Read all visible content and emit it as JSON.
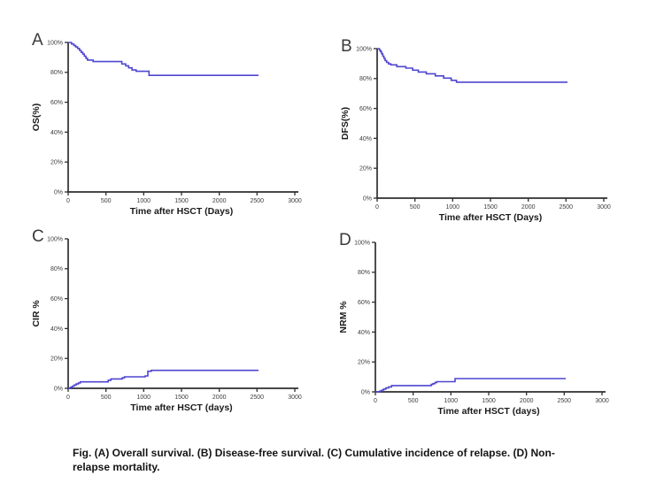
{
  "page": {
    "background": "#ffffff"
  },
  "colors": {
    "curve": "#4f46d0",
    "axis": "#2e2e2e",
    "tick_text": "#3d3d3d",
    "label_text": "#1a1a1a",
    "panel_letter": "#3a3a3a"
  },
  "caption": {
    "lines": [
      "Fig. (A) Overall survival. (B) Disease-free survival. (C) Cumulative incidence of relapse. (D) Non-",
      "relapse mortality."
    ]
  },
  "chart_data": [
    {
      "type": "line",
      "panel": "A",
      "ylabel": "OS(%)",
      "xlabel": "Time after HSCT (Days)",
      "xlim": [
        0,
        3000
      ],
      "ylim": [
        0,
        100
      ],
      "x_ticks": [
        0,
        500,
        1000,
        1500,
        2000,
        2500,
        3000
      ],
      "y_ticks": [
        0,
        20,
        40,
        60,
        80,
        100
      ],
      "y_tick_labels": [
        "0%",
        "20%",
        "40%",
        "60%",
        "80%",
        "100%"
      ],
      "step": true,
      "grid": false,
      "legend": "none",
      "series": [
        {
          "name": "Overall survival",
          "points": [
            [
              0,
              100
            ],
            [
              45,
              99
            ],
            [
              75,
              98
            ],
            [
              100,
              97
            ],
            [
              125,
              96
            ],
            [
              150,
              94.7
            ],
            [
              172,
              93.4
            ],
            [
              195,
              92.2
            ],
            [
              215,
              90.8
            ],
            [
              235,
              89.4
            ],
            [
              255,
              88.2
            ],
            [
              330,
              87.2
            ],
            [
              710,
              85.6
            ],
            [
              762,
              84.4
            ],
            [
              800,
              83
            ],
            [
              845,
              81.6
            ],
            [
              900,
              80.7
            ],
            [
              1070,
              78
            ],
            [
              2520,
              78
            ]
          ]
        }
      ]
    },
    {
      "type": "line",
      "panel": "B",
      "ylabel": "DFS(%)",
      "xlabel": "Time after HSCT (Days)",
      "xlim": [
        0,
        3000
      ],
      "ylim": [
        0,
        100
      ],
      "x_ticks": [
        0,
        500,
        1000,
        1500,
        2000,
        2500,
        3000
      ],
      "y_ticks": [
        0,
        20,
        40,
        60,
        80,
        100
      ],
      "y_tick_labels": [
        "0%",
        "20%",
        "40%",
        "60%",
        "80%",
        "100%"
      ],
      "step": true,
      "grid": false,
      "legend": "none",
      "series": [
        {
          "name": "Disease-free survival",
          "points": [
            [
              0,
              100
            ],
            [
              30,
              99
            ],
            [
              45,
              98
            ],
            [
              60,
              96.5
            ],
            [
              75,
              95
            ],
            [
              90,
              93.5
            ],
            [
              105,
              92
            ],
            [
              125,
              90.8
            ],
            [
              150,
              89.8
            ],
            [
              180,
              89.2
            ],
            [
              260,
              88
            ],
            [
              380,
              87
            ],
            [
              470,
              85.6
            ],
            [
              545,
              84.4
            ],
            [
              650,
              83.2
            ],
            [
              770,
              81.8
            ],
            [
              880,
              80.3
            ],
            [
              980,
              78.8
            ],
            [
              1050,
              77.6
            ],
            [
              2520,
              77.6
            ]
          ]
        }
      ]
    },
    {
      "type": "line",
      "panel": "C",
      "ylabel": "CIR %",
      "xlabel": "Time after HSCT (days)",
      "xlim": [
        0,
        3000
      ],
      "ylim": [
        0,
        100
      ],
      "x_ticks": [
        0,
        500,
        1000,
        1500,
        2000,
        2500,
        3000
      ],
      "y_ticks": [
        0,
        20,
        40,
        60,
        80,
        100
      ],
      "y_tick_labels": [
        "0%",
        "20%",
        "40%",
        "60%",
        "80%",
        "100%"
      ],
      "step": true,
      "grid": false,
      "legend": "none",
      "series": [
        {
          "name": "Cumulative incidence of relapse",
          "points": [
            [
              0,
              0
            ],
            [
              30,
              0.7
            ],
            [
              55,
              1.5
            ],
            [
              80,
              2.2
            ],
            [
              105,
              2.9
            ],
            [
              135,
              3.6
            ],
            [
              160,
              4.3
            ],
            [
              530,
              5.4
            ],
            [
              565,
              6.3
            ],
            [
              715,
              7
            ],
            [
              745,
              7.7
            ],
            [
              1020,
              8.3
            ],
            [
              1055,
              11.4
            ],
            [
              1100,
              12
            ],
            [
              2520,
              12
            ]
          ]
        }
      ]
    },
    {
      "type": "line",
      "panel": "D",
      "ylabel": "NRM %",
      "xlabel": "Time after HSCT (days)",
      "xlim": [
        0,
        3000
      ],
      "ylim": [
        0,
        100
      ],
      "x_ticks": [
        0,
        500,
        1000,
        1500,
        2000,
        2500,
        3000
      ],
      "y_ticks": [
        0,
        20,
        40,
        60,
        80,
        100
      ],
      "y_tick_labels": [
        "0%",
        "20%",
        "40%",
        "60%",
        "80%",
        "100%"
      ],
      "step": true,
      "grid": false,
      "legend": "none",
      "series": [
        {
          "name": "Non-relapse mortality",
          "points": [
            [
              0,
              0
            ],
            [
              60,
              0.6
            ],
            [
              85,
              1.2
            ],
            [
              110,
              1.9
            ],
            [
              140,
              2.6
            ],
            [
              175,
              3.3
            ],
            [
              215,
              4.2
            ],
            [
              740,
              5
            ],
            [
              762,
              5.5
            ],
            [
              790,
              6.3
            ],
            [
              812,
              6.8
            ],
            [
              1055,
              8.9
            ],
            [
              2520,
              8.9
            ]
          ]
        }
      ]
    }
  ]
}
